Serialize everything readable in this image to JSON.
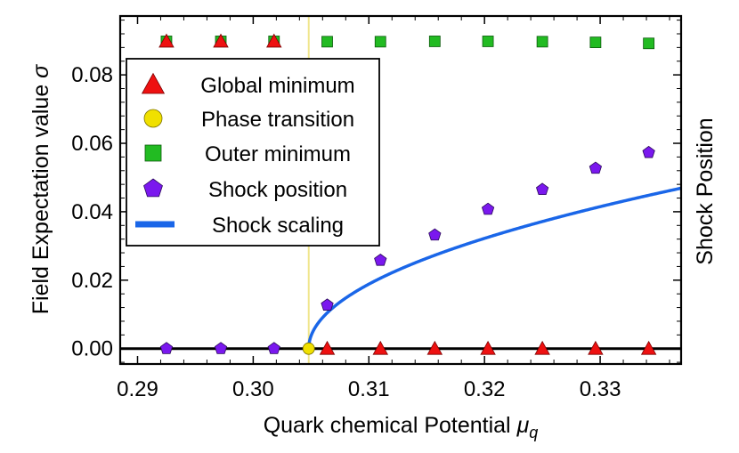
{
  "chart_data": {
    "type": "scatter",
    "xlabel": "Quark chemical Potential",
    "xlabel_symbol": "μ",
    "xlabel_sub": "q",
    "ylabel": "Field Expectation value",
    "ylabel_symbol": "σ",
    "right_label": "Shock Position",
    "xlim": [
      0.2885,
      0.337
    ],
    "ylim": [
      -0.0045,
      0.0972
    ],
    "x_ticks": [
      0.29,
      0.3,
      0.31,
      0.32,
      0.33
    ],
    "x_tick_labels": [
      "0.29",
      "0.30",
      "0.31",
      "0.32",
      "0.33"
    ],
    "y_ticks": [
      0.0,
      0.02,
      0.04,
      0.06,
      0.08
    ],
    "y_tick_labels": [
      "0.00",
      "0.02",
      "0.04",
      "0.06",
      "0.08"
    ],
    "phase_transition_line_x": 0.3048,
    "legend_placement": "top-left",
    "colors": {
      "global_minimum": "#ee1111",
      "phase_transition": "#f0e000",
      "outer_minimum": "#22bb22",
      "shock_position": "#7a18ee",
      "shock_scaling": "#1a66e8",
      "transition_line": "#f0e68c"
    },
    "series": [
      {
        "name": "Global minimum",
        "marker": "triangle",
        "points": [
          [
            0.2925,
            0.0898
          ],
          [
            0.2972,
            0.0898
          ],
          [
            0.3018,
            0.0898
          ],
          [
            0.3064,
            0.0
          ],
          [
            0.311,
            0.0
          ],
          [
            0.3157,
            0.0
          ],
          [
            0.3203,
            0.0
          ],
          [
            0.325,
            0.0
          ],
          [
            0.3296,
            0.0
          ],
          [
            0.3342,
            0.0
          ]
        ]
      },
      {
        "name": "Phase transition",
        "marker": "circle",
        "points": [
          [
            0.3048,
            0.0
          ]
        ]
      },
      {
        "name": "Outer minimum",
        "marker": "square",
        "points": [
          [
            0.2925,
            0.0898
          ],
          [
            0.2972,
            0.0898
          ],
          [
            0.3018,
            0.0898
          ],
          [
            0.3064,
            0.0897
          ],
          [
            0.311,
            0.0897
          ],
          [
            0.3157,
            0.0898
          ],
          [
            0.3203,
            0.0898
          ],
          [
            0.325,
            0.0897
          ],
          [
            0.3296,
            0.0895
          ],
          [
            0.3342,
            0.0892
          ]
        ]
      },
      {
        "name": "Shock position",
        "marker": "pentagon",
        "points": [
          [
            0.2925,
            0.0
          ],
          [
            0.2972,
            0.0
          ],
          [
            0.3018,
            0.0
          ],
          [
            0.3064,
            0.0127
          ],
          [
            0.311,
            0.0258
          ],
          [
            0.3157,
            0.0332
          ],
          [
            0.3203,
            0.0407
          ],
          [
            0.325,
            0.0465
          ],
          [
            0.3296,
            0.0527
          ],
          [
            0.3342,
            0.0573
          ]
        ]
      },
      {
        "name": "Shock scaling",
        "marker": "line",
        "x0": 0.3048,
        "coefficient": 0.2613,
        "exponent": 0.5
      }
    ]
  }
}
